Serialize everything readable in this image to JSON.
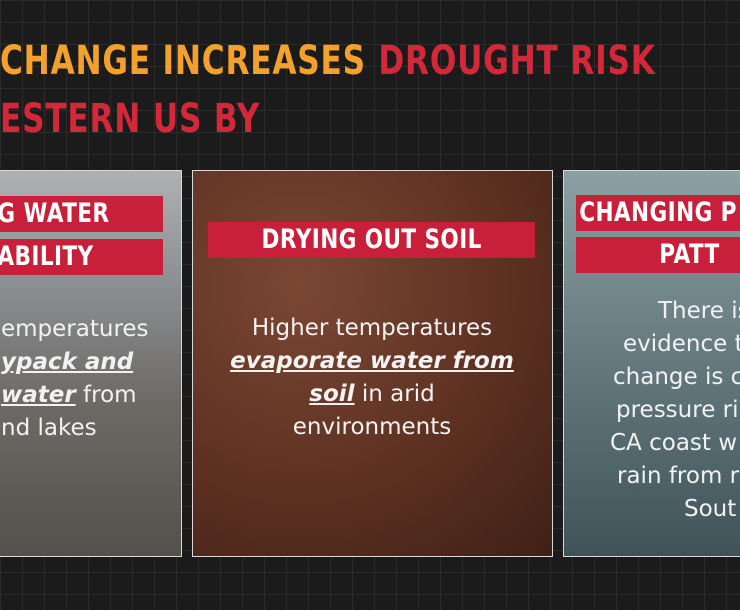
{
  "title": {
    "line1": [
      {
        "text": "CHANGE INCREASES",
        "tone": "yellow"
      },
      {
        "text": "DROUGHT RISK",
        "tone": "red"
      }
    ],
    "line2": [
      {
        "text": "ESTERN US BY",
        "tone": "red"
      }
    ]
  },
  "cards": [
    {
      "labels": [
        "G WATER",
        "ABILITY"
      ],
      "body": [
        [
          {
            "text": "emperatures",
            "em": false
          }
        ],
        [
          {
            "text": "ypack and",
            "em": true
          }
        ],
        [
          {
            "text": "water",
            "em": true
          },
          {
            "text": " from",
            "em": false
          }
        ],
        [
          {
            "text": "nd lakes",
            "em": false
          }
        ]
      ]
    },
    {
      "labels": [
        "DRYING OUT SOIL"
      ],
      "body": [
        [
          {
            "text": "Higher temperatures",
            "em": false
          }
        ],
        [
          {
            "text": "evaporate water from",
            "em": true
          }
        ],
        [
          {
            "text": "soil",
            "em": true
          },
          {
            "text": " in arid",
            "em": false
          }
        ],
        [
          {
            "text": "environments",
            "em": false
          }
        ]
      ]
    },
    {
      "labels": [
        "CHANGING P",
        "PATT"
      ],
      "body": [
        [
          {
            "text": "There is",
            "em": false
          }
        ],
        [
          {
            "text": "evidence t",
            "em": false
          }
        ],
        [
          {
            "text": "change is c",
            "em": false
          }
        ],
        [
          {
            "text": "pressure ri",
            "em": false
          }
        ],
        [
          {
            "text": "CA coast w",
            "em": false
          }
        ],
        [
          {
            "text": "rain from r",
            "em": false
          }
        ],
        [
          {
            "text": "Sout",
            "em": false
          }
        ]
      ]
    }
  ]
}
